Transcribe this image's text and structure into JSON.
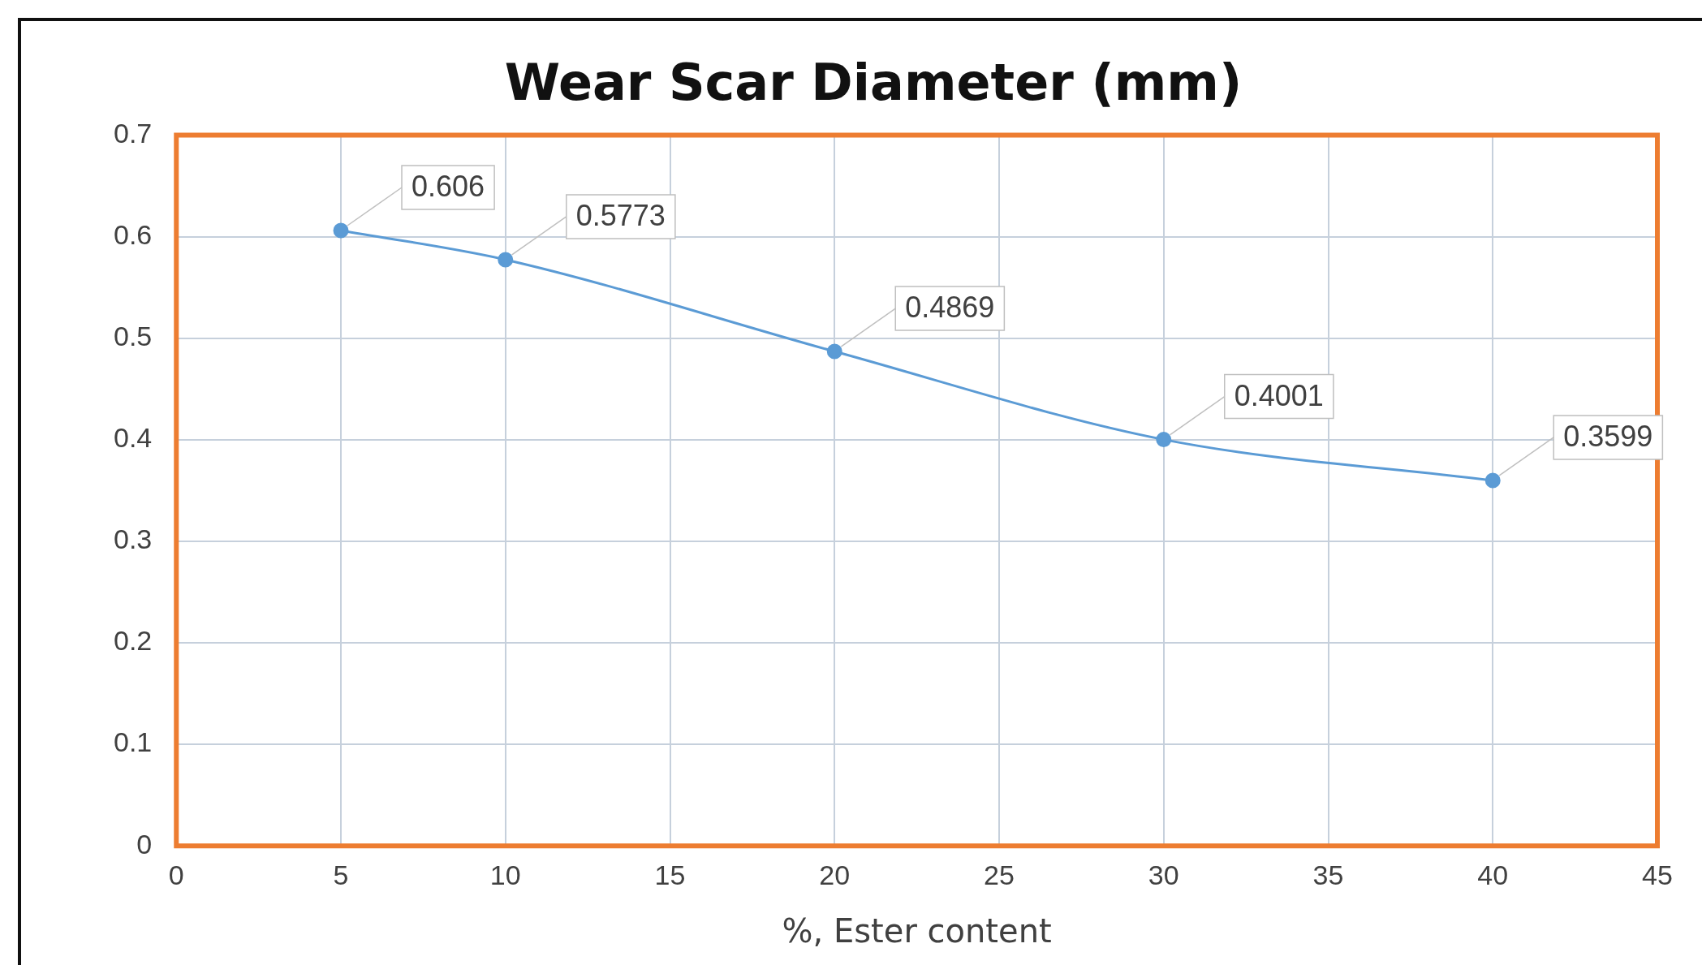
{
  "chart_data": {
    "type": "line",
    "title": "Wear Scar Diameter (mm)",
    "xlabel": "%, Ester content",
    "x": [
      5,
      10,
      20,
      30,
      40
    ],
    "series": [
      {
        "color": "#5b9bd5",
        "values": [
          0.606,
          0.5773,
          0.4869,
          0.4001,
          0.3599
        ]
      }
    ],
    "xlim": [
      0,
      45
    ],
    "xticks": [
      0,
      5,
      10,
      15,
      20,
      25,
      30,
      35,
      40,
      45
    ],
    "ylim": [
      0,
      0.7
    ],
    "yticks": [
      0,
      0.1,
      0.2,
      0.3,
      0.4,
      0.5,
      0.6,
      0.7
    ],
    "grid": true,
    "legend": false,
    "marker": "circle",
    "line_style": "solid",
    "data_labels": true
  }
}
